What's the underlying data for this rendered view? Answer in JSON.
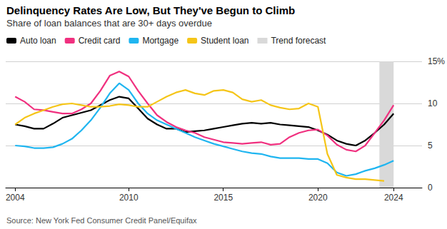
{
  "chart_data": {
    "type": "line",
    "title": "Delinquency Rates Are Low, But They've Begun to Climb",
    "subtitle": "Share of loan balances that are 30+ days overdue",
    "source": "Source: New York Fed Consumer Credit Panel/Equifax",
    "x": [
      2004,
      2004.5,
      2005,
      2005.5,
      2006,
      2006.5,
      2007,
      2007.5,
      2008,
      2008.5,
      2009,
      2009.5,
      2010,
      2010.5,
      2011,
      2011.5,
      2012,
      2012.5,
      2013,
      2013.5,
      2014,
      2014.5,
      2015,
      2015.5,
      2016,
      2016.5,
      2017,
      2017.5,
      2018,
      2018.5,
      2019,
      2019.5,
      2020,
      2020.5,
      2021,
      2021.5,
      2022,
      2022.5,
      2023,
      2023.5,
      2024
    ],
    "series": [
      {
        "name": "Auto loan",
        "color": "#000000",
        "values": [
          7.5,
          7.3,
          7.0,
          7.0,
          7.6,
          8.3,
          8.6,
          8.9,
          9.2,
          9.8,
          10.4,
          10.8,
          10.6,
          9.4,
          8.2,
          7.5,
          7.0,
          7.0,
          6.6,
          6.7,
          6.8,
          7.0,
          7.2,
          7.4,
          7.6,
          7.7,
          7.6,
          7.7,
          7.5,
          7.4,
          7.3,
          7.2,
          6.8,
          6.3,
          5.6,
          5.2,
          5.0,
          5.6,
          6.5,
          7.5,
          8.8
        ]
      },
      {
        "name": "Credit card",
        "color": "#f0307f",
        "values": [
          10.8,
          10.2,
          9.3,
          9.2,
          9.0,
          8.8,
          8.8,
          9.3,
          10.0,
          11.5,
          13.3,
          13.8,
          13.2,
          11.5,
          10.0,
          8.6,
          7.8,
          7.2,
          6.8,
          6.5,
          6.0,
          5.7,
          5.4,
          5.3,
          5.2,
          5.3,
          5.4,
          5.1,
          5.2,
          6.0,
          6.5,
          6.8,
          6.9,
          6.2,
          5.1,
          4.5,
          4.3,
          5.0,
          6.5,
          8.0,
          9.8
        ]
      },
      {
        "name": "Mortgage",
        "color": "#1fb5f0",
        "values": [
          5.0,
          4.9,
          4.7,
          4.7,
          4.8,
          5.2,
          5.8,
          6.8,
          8.0,
          9.5,
          11.2,
          12.4,
          11.6,
          10.0,
          8.8,
          8.0,
          7.5,
          7.0,
          6.5,
          6.0,
          5.6,
          5.2,
          4.9,
          4.6,
          4.3,
          4.1,
          4.0,
          3.7,
          3.5,
          3.5,
          3.5,
          3.4,
          3.4,
          2.9,
          1.8,
          1.4,
          1.6,
          2.0,
          2.3,
          2.7,
          3.2
        ]
      },
      {
        "name": "Student loan",
        "color": "#f5c518",
        "values": [
          7.5,
          8.3,
          8.8,
          9.2,
          9.6,
          9.9,
          10.0,
          9.8,
          9.6,
          9.6,
          9.7,
          9.9,
          9.8,
          9.6,
          9.6,
          10.2,
          10.8,
          11.3,
          11.6,
          11.2,
          11.0,
          11.5,
          11.6,
          11.3,
          10.5,
          10.2,
          10.4,
          9.8,
          9.5,
          9.3,
          9.4,
          10.0,
          9.6,
          4.0,
          1.5,
          1.2,
          1.0,
          1.0,
          0.9,
          0.8,
          null
        ]
      },
      {
        "name": "Trend forecast",
        "type": "band",
        "color": "#d9d9d9",
        "x_range": [
          2023.25,
          2024
        ]
      }
    ],
    "xlim": [
      2003.5,
      2025.5
    ],
    "xticks": [
      2004,
      2010,
      2015,
      2020,
      2024
    ],
    "ylim": [
      0,
      15
    ],
    "yticks": [
      0,
      5,
      10,
      {
        "value": 15,
        "label": "15%"
      }
    ],
    "grid": true,
    "legend": "top-left"
  }
}
